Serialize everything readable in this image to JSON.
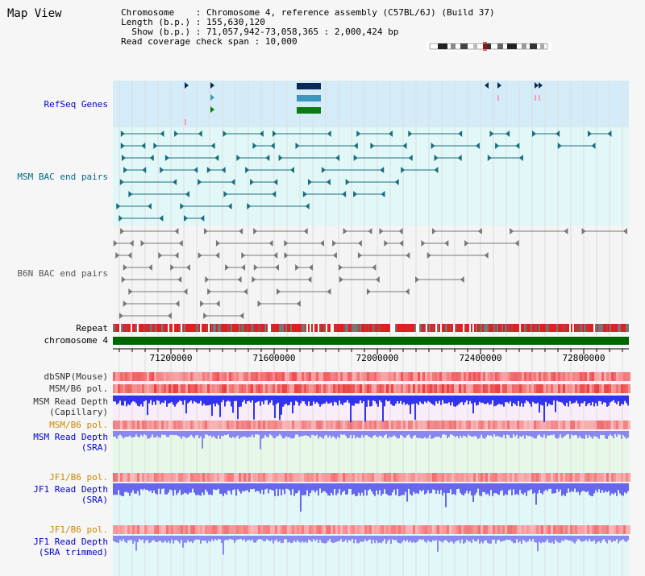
{
  "title": "Map View",
  "info": {
    "chromosome_label": "Chromosome",
    "chromosome_value": "Chromosome 4, reference assembly (C57BL/6J) (Build 37)",
    "length_label": "Length (b.p.)",
    "length_value": "155,630,120",
    "show_label": "Show (b.p.)",
    "show_value": "71,057,942-73,058,365 : 2,000,424 bp",
    "coverage_label": "Read coverage check span",
    "coverage_value": "10,000"
  },
  "tracks": {
    "refseq": "RefSeq Genes",
    "msm_bac": "MSM BAC end pairs",
    "b6n_bac": "B6N BAC end pairs",
    "repeat": "Repeat",
    "chromosome": "chromosome 4",
    "dbsnp": "dbSNP(Mouse)",
    "msm_b6_pol_1": "MSM/B6 pol.",
    "msm_read_depth_cap_1": "MSM Read Depth",
    "msm_read_depth_cap_2": "(Capillary)",
    "msm_b6_pol_2": "MSM/B6 pol.",
    "msm_read_depth_sra_1": "MSM Read Depth",
    "msm_read_depth_sra_2": "(SRA)",
    "jf1_b6_pol_1": "JF1/B6 pol.",
    "jf1_read_depth_1": "JF1 Read Depth",
    "jf1_read_depth_2": "(SRA)",
    "jf1_b6_pol_2": "JF1/B6 pol.",
    "jf1_trim_1": "JF1 Read Depth",
    "jf1_trim_2": "(SRA trimmed)"
  },
  "axis_ticks": [
    "71200000",
    "71600000",
    "72000000",
    "72400000",
    "72800000"
  ],
  "colors": {
    "refseq_bg": "#d4ecf8",
    "msm_bac_bg": "#e2f7f7",
    "b6n_bac_bg": "#f4f4f4",
    "lower_bg": "#f8edf8",
    "lower_bg2": "#e8f8e8",
    "lower_bg3": "#e2f7f7",
    "msm_feature": "#1a6f7f",
    "b6n_feature": "#777777",
    "blue_label": "#0000cc",
    "orange_label": "#cc8800",
    "teal_label": "#006a80",
    "gray_label": "#555555",
    "chromosome_bar": "#006600"
  }
}
